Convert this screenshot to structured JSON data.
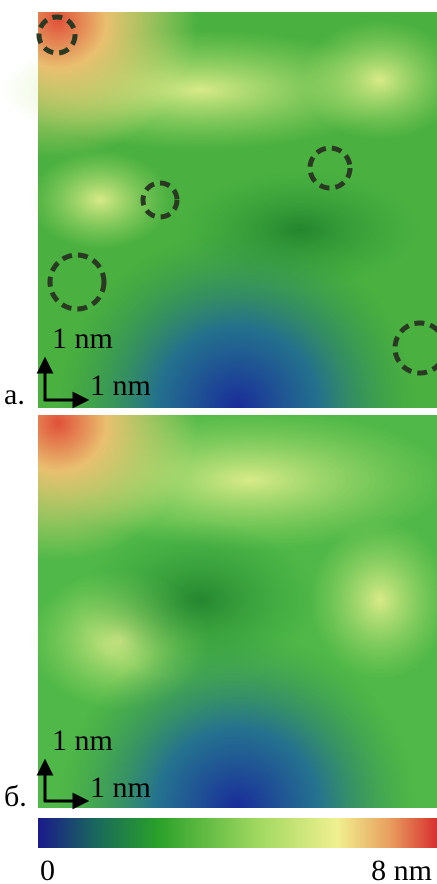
{
  "panels": [
    {
      "label": "а.",
      "scale_y": "1 nm",
      "scale_x": "1 nm"
    },
    {
      "label": "б.",
      "scale_y": "1 nm",
      "scale_x": "1 nm"
    }
  ],
  "colorbar": {
    "min_label": "0",
    "max_label": "8 nm"
  }
}
